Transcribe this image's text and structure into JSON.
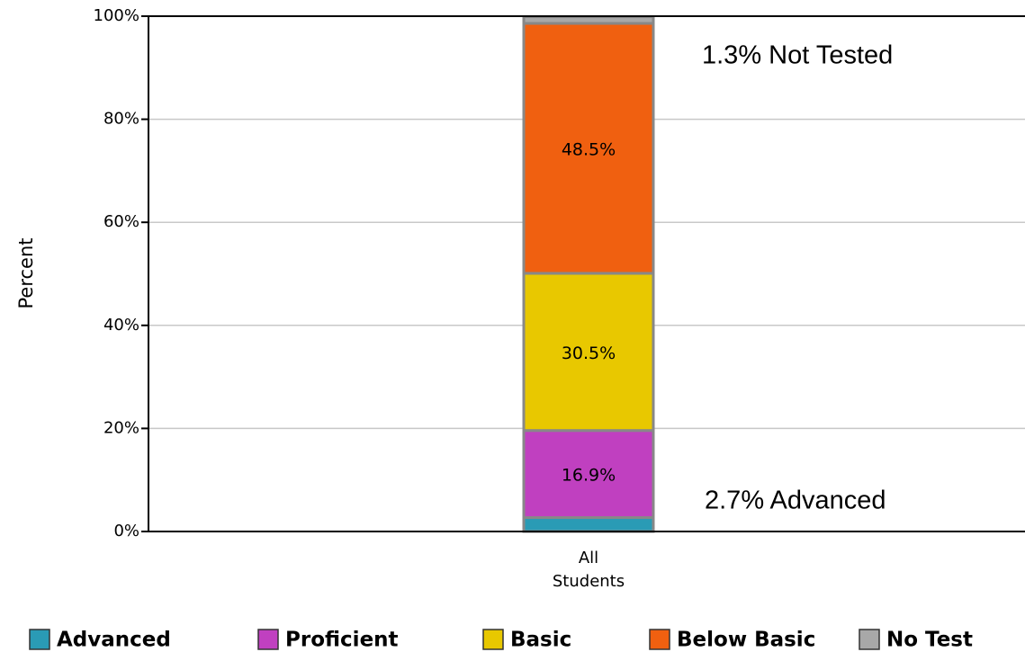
{
  "chart_data": {
    "type": "stacked_bar",
    "y_label": "Percent",
    "categories": [
      "All Students"
    ],
    "series": [
      {
        "name": "Advanced",
        "color": "#2a9bb5",
        "values": [
          2.7
        ]
      },
      {
        "name": "Proficient",
        "color": "#c040c0",
        "values": [
          16.9
        ],
        "value_labels": [
          "16.9%"
        ]
      },
      {
        "name": "Basic",
        "color": "#e8c800",
        "values": [
          30.5
        ],
        "value_labels": [
          "30.5%"
        ]
      },
      {
        "name": "Below Basic",
        "color": "#f06010",
        "values": [
          48.5
        ],
        "value_labels": [
          "48.5%"
        ]
      },
      {
        "name": "No Test",
        "color": "#a8a8a8",
        "values": [
          1.3
        ]
      }
    ],
    "annotations": [
      "1.3% Not Tested",
      "2.7% Advanced"
    ],
    "ylim": [
      0,
      100
    ],
    "yticks": [
      {
        "value": 0,
        "label": "0%"
      },
      {
        "value": 20,
        "label": "20%"
      },
      {
        "value": 40,
        "label": "40%"
      },
      {
        "value": 60,
        "label": "60%"
      },
      {
        "value": 80,
        "label": "80%"
      },
      {
        "value": 100,
        "label": "100%"
      }
    ],
    "grid": true,
    "legend": "bottom"
  }
}
